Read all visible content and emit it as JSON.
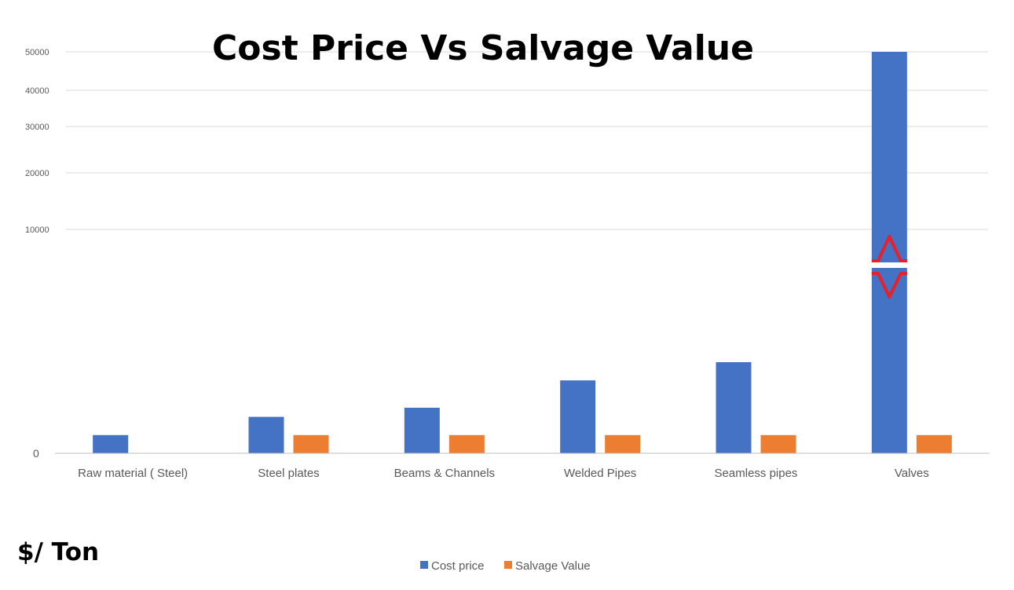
{
  "chart_data": {
    "type": "bar",
    "title": "Cost Price Vs Salvage Value",
    "unit_label": "$/ Ton",
    "xlabel": "",
    "ylabel": "",
    "categories": [
      "Raw material ( Steel)",
      "Steel plates",
      "Beams & Channels",
      "Welded Pipes",
      "Seamless pipes",
      "Valves"
    ],
    "series": [
      {
        "name": "Cost price",
        "color": "#4472C4",
        "values": [
          500,
          1000,
          1250,
          2000,
          2500,
          50000
        ]
      },
      {
        "name": "Salvage Value",
        "color": "#ED7D31",
        "values": [
          null,
          500,
          500,
          500,
          500,
          500
        ]
      }
    ],
    "ylim": [
      0,
      50000
    ],
    "axis_break": true,
    "y_ticks": [
      {
        "label": "0",
        "value": 0
      },
      {
        "label": "10000",
        "value": 10000
      },
      {
        "label": "20000",
        "value": 20000
      },
      {
        "label": "30000",
        "value": 30000
      },
      {
        "label": "40000",
        "value": 40000
      },
      {
        "label": "50000",
        "value": 50000
      }
    ],
    "grid": true,
    "legend_position": "bottom",
    "break_marker_color": "#E8202A",
    "gridline_color": "#D9D9D9",
    "axis_color": "#BFBFBF"
  }
}
